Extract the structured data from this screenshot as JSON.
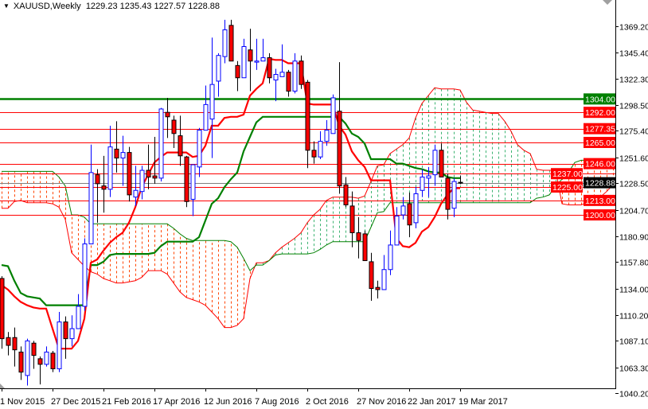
{
  "header": {
    "symbol_timeframe": "XAUUSD,Weekly",
    "ohlc": "1229.23 1235.43 1227.57 1228.88",
    "menu_icon": "triangle-down-icon"
  },
  "chart_data": {
    "type": "candlestick",
    "indicator": "ichimoku",
    "ylim": [
      1040.2,
      1369.2
    ],
    "y_tick_labels": [
      "1369.20",
      "1345.40",
      "1322.30",
      "1298.50",
      "1275.40",
      "1251.60",
      "1228.50",
      "1204.70",
      "1180.90",
      "1157.80",
      "1134.00",
      "1110.20",
      "1087.10",
      "1063.30",
      "1040.20"
    ],
    "x_tick_labels": [
      "1 Nov 2015",
      "27 Dec 2015",
      "21 Feb 2016",
      "17 Apr 2016",
      "12 Jun 2016",
      "7 Aug 2016",
      "2 Oct 2016",
      "27 Nov 2016",
      "22 Jan 2017",
      "19 Mar 2017"
    ],
    "colors": {
      "bull": "#0000ff",
      "bear": "#ff0000",
      "tenkan": "#ff0000",
      "kijun": "#008000",
      "cloud_bull": "#3cb371",
      "cloud_bear": "#ff4500",
      "current_price": "#808080"
    },
    "candles_ohlc": [
      [
        1143,
        1145,
        1080,
        1089
      ],
      [
        1090,
        1095,
        1074,
        1083
      ],
      [
        1090,
        1099,
        1064,
        1079
      ],
      [
        1077,
        1082,
        1052,
        1059
      ],
      [
        1056,
        1089,
        1047,
        1087
      ],
      [
        1085,
        1087,
        1062,
        1074
      ],
      [
        1071,
        1073,
        1048,
        1066
      ],
      [
        1066,
        1082,
        1064,
        1077
      ],
      [
        1076,
        1078,
        1059,
        1062
      ],
      [
        1062,
        1113,
        1059,
        1104
      ],
      [
        1104,
        1109,
        1071,
        1089
      ],
      [
        1089,
        1110,
        1082,
        1098
      ],
      [
        1098,
        1129,
        1098,
        1118
      ],
      [
        1118,
        1179,
        1114,
        1174
      ],
      [
        1174,
        1263,
        1174,
        1238
      ],
      [
        1236,
        1241,
        1193,
        1228
      ],
      [
        1226,
        1253,
        1202,
        1223
      ],
      [
        1223,
        1280,
        1216,
        1261
      ],
      [
        1259,
        1284,
        1238,
        1251
      ],
      [
        1251,
        1271,
        1226,
        1256
      ],
      [
        1256,
        1261,
        1212,
        1218
      ],
      [
        1216,
        1244,
        1208,
        1222
      ],
      [
        1221,
        1244,
        1214,
        1240
      ],
      [
        1240,
        1263,
        1223,
        1234
      ],
      [
        1235,
        1270,
        1228,
        1233
      ],
      [
        1233,
        1296,
        1230,
        1295
      ],
      [
        1292,
        1305,
        1269,
        1288
      ],
      [
        1285,
        1289,
        1260,
        1273
      ],
      [
        1271,
        1289,
        1244,
        1253
      ],
      [
        1252,
        1253,
        1207,
        1212
      ],
      [
        1214,
        1245,
        1199,
        1245
      ],
      [
        1243,
        1278,
        1234,
        1276
      ],
      [
        1276,
        1316,
        1276,
        1299
      ],
      [
        1286,
        1359,
        1251,
        1317
      ],
      [
        1320,
        1345,
        1306,
        1343
      ],
      [
        1342,
        1375,
        1336,
        1366
      ],
      [
        1370,
        1375,
        1338,
        1338
      ],
      [
        1334,
        1338,
        1311,
        1323
      ],
      [
        1323,
        1358,
        1323,
        1351
      ],
      [
        1348,
        1367,
        1311,
        1338
      ],
      [
        1337,
        1358,
        1330,
        1338
      ],
      [
        1338,
        1358,
        1338,
        1341
      ],
      [
        1341,
        1345,
        1318,
        1323
      ],
      [
        1321,
        1331,
        1302,
        1326
      ],
      [
        1324,
        1353,
        1324,
        1328
      ],
      [
        1328,
        1330,
        1306,
        1311
      ],
      [
        1311,
        1345,
        1309,
        1338
      ],
      [
        1338,
        1343,
        1313,
        1317
      ],
      [
        1319,
        1321,
        1242,
        1258
      ],
      [
        1258,
        1266,
        1246,
        1252
      ],
      [
        1252,
        1275,
        1250,
        1266
      ],
      [
        1266,
        1285,
        1262,
        1276
      ],
      [
        1273,
        1308,
        1273,
        1305
      ],
      [
        1293,
        1337,
        1219,
        1226
      ],
      [
        1227,
        1234,
        1207,
        1209
      ],
      [
        1208,
        1221,
        1171,
        1184
      ],
      [
        1184,
        1198,
        1161,
        1177
      ],
      [
        1183,
        1186,
        1159,
        1159
      ],
      [
        1158,
        1166,
        1123,
        1134
      ],
      [
        1135,
        1141,
        1125,
        1133
      ],
      [
        1133,
        1164,
        1133,
        1151
      ],
      [
        1151,
        1186,
        1146,
        1173
      ],
      [
        1173,
        1207,
        1173,
        1199
      ],
      [
        1200,
        1216,
        1196,
        1208
      ],
      [
        1210,
        1220,
        1180,
        1191
      ],
      [
        1193,
        1225,
        1188,
        1219
      ],
      [
        1222,
        1241,
        1216,
        1234
      ],
      [
        1233,
        1243,
        1216,
        1235
      ],
      [
        1236,
        1263,
        1226,
        1258
      ],
      [
        1258,
        1264,
        1234,
        1234
      ],
      [
        1233,
        1237,
        1196,
        1205
      ],
      [
        1206,
        1233,
        1198,
        1230
      ],
      [
        1229.23,
        1235.43,
        1227.57,
        1228.88
      ]
    ],
    "tenkan_sen": [
      1137,
      1133,
      1127,
      1122,
      1119,
      1117,
      1116,
      1116,
      1098,
      1080,
      1080,
      1080,
      1087,
      1107,
      1157,
      1160,
      1168,
      1175,
      1180,
      1184,
      1193,
      1207,
      1225,
      1236,
      1247,
      1252,
      1256,
      1256,
      1256,
      1256,
      1252,
      1253,
      1262,
      1280,
      1280,
      1287,
      1288,
      1288,
      1290,
      1307,
      1313,
      1318,
      1340,
      1339,
      1339,
      1336,
      1336,
      1336,
      1300,
      1299,
      1299,
      1299,
      1299,
      1280,
      1272,
      1257,
      1249,
      1243,
      1231,
      1231,
      1231,
      1231,
      1179,
      1172,
      1171,
      1175,
      1185,
      1189,
      1198,
      1210,
      1218,
      1224,
      1224
    ],
    "kijun_sen": [
      1155,
      1154,
      1141,
      1130,
      1127,
      1126,
      1125,
      1119,
      1119,
      1119,
      1119,
      1119,
      1119,
      1119,
      1155,
      1155,
      1158,
      1164,
      1165,
      1165,
      1165,
      1165,
      1165,
      1165,
      1166,
      1172,
      1176,
      1176,
      1176,
      1176,
      1176,
      1180,
      1195,
      1210,
      1215,
      1225,
      1232,
      1238,
      1257,
      1270,
      1283,
      1288,
      1288,
      1288,
      1288,
      1288,
      1288,
      1288,
      1288,
      1288,
      1288,
      1288,
      1288,
      1288,
      1282,
      1273,
      1270,
      1264,
      1250,
      1250,
      1250,
      1250,
      1246,
      1246,
      1244,
      1242,
      1241,
      1239,
      1238,
      1238,
      1234,
      1233,
      1233
    ],
    "senkou_span_a": [
      1206,
      1206,
      1212,
      1213,
      1211,
      1211,
      1211,
      1211,
      1210,
      1207,
      1196,
      1166,
      1160,
      1154,
      1149,
      1147,
      1143,
      1141,
      1139,
      1139,
      1140,
      1141,
      1144,
      1150,
      1150,
      1150,
      1147,
      1139,
      1131,
      1126,
      1124,
      1122,
      1119,
      1113,
      1107,
      1099,
      1099,
      1101,
      1107,
      1143,
      1157,
      1157,
      1159,
      1166,
      1171,
      1175,
      1179,
      1184,
      1193,
      1200,
      1205,
      1213,
      1216,
      1216,
      1216,
      1216,
      1215,
      1217,
      1230,
      1244,
      1245,
      1255,
      1259,
      1263,
      1269,
      1287,
      1300,
      1307,
      1314,
      1313,
      1313,
      1313,
      1312,
      1301,
      1294,
      1293,
      1292,
      1291,
      1291,
      1284,
      1275,
      1263,
      1258,
      1255,
      1241,
      1240,
      1240,
      1240,
      1210,
      1209,
      1209,
      1209,
      1211,
      1212,
      1216,
      1221,
      1227
    ],
    "senkou_span_b": [
      1239,
      1239,
      1239,
      1239,
      1239,
      1239,
      1239,
      1239,
      1239,
      1234,
      1226,
      1200,
      1200,
      1198,
      1192,
      1192,
      1192,
      1192,
      1192,
      1192,
      1192,
      1192,
      1192,
      1192,
      1192,
      1192,
      1192,
      1188,
      1183,
      1179,
      1177,
      1177,
      1177,
      1177,
      1177,
      1177,
      1176,
      1171,
      1161,
      1150,
      1155,
      1155,
      1159,
      1164,
      1165,
      1165,
      1165,
      1165,
      1165,
      1166,
      1169,
      1173,
      1176,
      1176,
      1176,
      1176,
      1176,
      1176,
      1189,
      1202,
      1203,
      1211,
      1211,
      1211,
      1211,
      1211,
      1211,
      1211,
      1211,
      1211,
      1211,
      1211,
      1211,
      1211,
      1211,
      1211,
      1211,
      1211,
      1211,
      1211,
      1211,
      1211,
      1211,
      1211,
      1215,
      1216,
      1218,
      1226,
      1232,
      1238,
      1247,
      1249,
      1249,
      1249,
      1249,
      1249,
      1249
    ],
    "horizontal_levels": [
      {
        "price": 1304.0,
        "label": "1304.00",
        "color": "#008000"
      },
      {
        "price": 1292.0,
        "label": "1292.00",
        "color": "#ff0000"
      },
      {
        "price": 1277.35,
        "label": "1277.35",
        "color": "#ff0000"
      },
      {
        "price": 1265.0,
        "label": "1265.00",
        "color": "#ff0000"
      },
      {
        "price": 1246.0,
        "label": "1246.00",
        "color": "#ff0000"
      },
      {
        "price": 1237.0,
        "label": "1237.00",
        "color": "#ff0000"
      },
      {
        "price": 1225.0,
        "label": "1225.00",
        "color": "#ff0000"
      },
      {
        "price": 1213.0,
        "label": "1213.00",
        "color": "#ff0000"
      },
      {
        "price": 1200.0,
        "label": "1200.00",
        "color": "#ff0000"
      }
    ],
    "current_price": {
      "price": 1228.88,
      "label": "1228.88"
    }
  }
}
